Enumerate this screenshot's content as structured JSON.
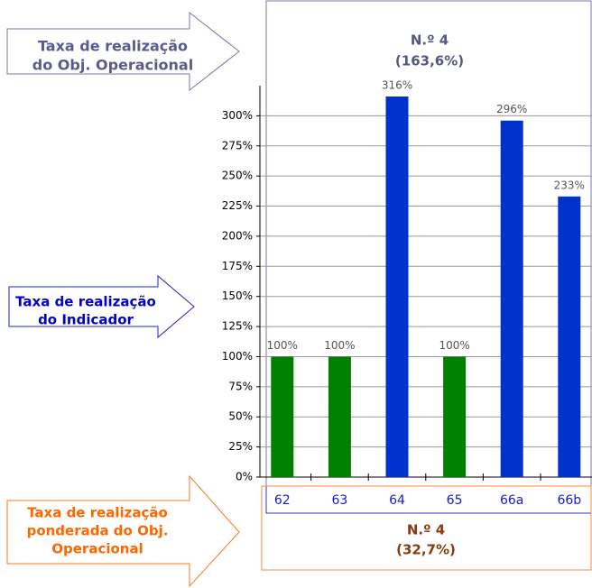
{
  "chart_data": {
    "type": "bar",
    "title": "N.º 4",
    "subtitle": "(163,6%)",
    "categories": [
      "62",
      "63",
      "64",
      "65",
      "66a",
      "66b"
    ],
    "values": [
      100,
      100,
      316,
      100,
      296,
      233
    ],
    "value_labels": [
      "100%",
      "100%",
      "316%",
      "100%",
      "296%",
      "233%"
    ],
    "colors": [
      "#008000",
      "#008000",
      "#0033cc",
      "#008000",
      "#0033cc",
      "#0033cc"
    ],
    "ylim": [
      0,
      325
    ],
    "yticks": [
      {
        "value": 0,
        "label": "0%"
      },
      {
        "value": 25,
        "label": "25%"
      },
      {
        "value": 50,
        "label": "50%"
      },
      {
        "value": 75,
        "label": "75%"
      },
      {
        "value": 100,
        "label": "100%"
      },
      {
        "value": 125,
        "label": "125%"
      },
      {
        "value": 150,
        "label": "150%"
      },
      {
        "value": 175,
        "label": "175%"
      },
      {
        "value": 200,
        "label": "200%"
      },
      {
        "value": 225,
        "label": "225%"
      },
      {
        "value": 250,
        "label": "250%"
      },
      {
        "value": 275,
        "label": "275%"
      },
      {
        "value": 300,
        "label": "300%"
      }
    ],
    "grid": true,
    "annotations": [
      {
        "lines": [
          "Taxa de realização",
          "do Obj. Operacional"
        ]
      },
      {
        "lines": [
          "Taxa de realização",
          "do Indicador"
        ]
      },
      {
        "lines": [
          "Taxa de realização",
          "ponderada do Obj.",
          "Operacional"
        ]
      }
    ],
    "footer": {
      "title": "N.º 4",
      "subtitle": "(32,7%)"
    }
  }
}
